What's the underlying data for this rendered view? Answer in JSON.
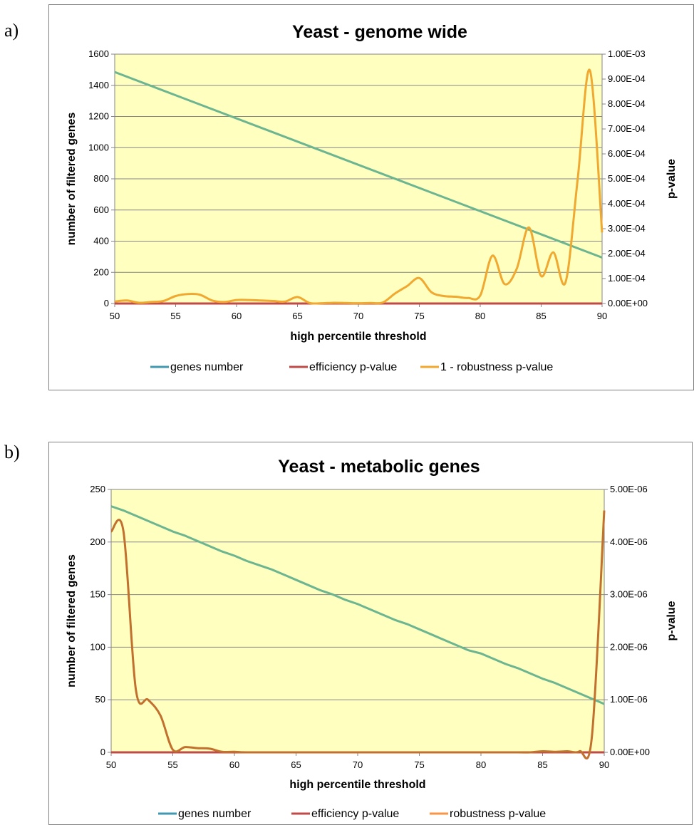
{
  "panels": {
    "a_label": "a)",
    "b_label": "b)"
  },
  "colors": {
    "plot_background": "#ffffc0",
    "gridline": "#868686",
    "genes_number_line": "#6cb591",
    "genes_number_legend": "#4198af",
    "efficiency_pvalue": "#be4b48",
    "robustness_pvalue_a": "#f0a830",
    "robustness_pvalue_b": "#c2702e",
    "robustness_legend_b": "#f79646"
  },
  "chart_data": [
    {
      "type": "line",
      "title": "Yeast - genome wide",
      "xlabel": "high percentile threshold",
      "ylabel": "number of filtered genes",
      "y2label": "p-value",
      "xlim": [
        50,
        90
      ],
      "ylim": [
        0,
        1600
      ],
      "y2lim": [
        0,
        0.001
      ],
      "x_ticks": [
        "50",
        "55",
        "60",
        "65",
        "70",
        "75",
        "80",
        "85",
        "90"
      ],
      "y_ticks": [
        "0",
        "200",
        "400",
        "600",
        "800",
        "1000",
        "1200",
        "1400",
        "1600"
      ],
      "y2_ticks": [
        "0.00E+00",
        "1.00E-04",
        "2.00E-04",
        "3.00E-04",
        "4.00E-04",
        "5.00E-04",
        "6.00E-04",
        "7.00E-04",
        "8.00E-04",
        "9.00E-04",
        "1.00E-03"
      ],
      "grid": true,
      "legend_position": "bottom",
      "series": [
        {
          "name": "genes number",
          "axis": "left",
          "x": [
            50,
            90
          ],
          "values": [
            1485,
            295
          ]
        },
        {
          "name": "efficiency p-value",
          "axis": "right",
          "x": [
            50,
            90
          ],
          "values": [
            0,
            0
          ]
        },
        {
          "name": "1 - robustness p-value",
          "axis": "right",
          "x": [
            50,
            51,
            52,
            53,
            54,
            55,
            56,
            57,
            58,
            59,
            60,
            61,
            62,
            63,
            64,
            65,
            66,
            67,
            68,
            69,
            70,
            71,
            72,
            73,
            74,
            75,
            76,
            77,
            78,
            79,
            80,
            81,
            82,
            83,
            84,
            85,
            86,
            87,
            88,
            89,
            90
          ],
          "values": [
            8e-06,
            1.2e-05,
            3e-06,
            6e-06,
            1e-05,
            3e-05,
            3.8e-05,
            3.5e-05,
            1.2e-05,
            6e-06,
            1.4e-05,
            1.4e-05,
            1.2e-05,
            1e-05,
            8e-06,
            2.6e-05,
            2e-06,
            1e-06,
            3e-06,
            2e-06,
            1e-06,
            2e-06,
            4e-06,
            4e-05,
            7e-05,
            0.000102,
            4.5e-05,
            3e-05,
            2.7e-05,
            2.2e-05,
            3.2e-05,
            0.000192,
            7.8e-05,
            0.00014,
            0.000305,
            0.00011,
            0.000205,
            8.5e-05,
            0.0005,
            0.000935,
            0.000285
          ]
        }
      ]
    },
    {
      "type": "line",
      "title": "Yeast - metabolic genes",
      "xlabel": "high percentile threshold",
      "ylabel": "number of filtered genes",
      "y2label": "p-value",
      "xlim": [
        50,
        90
      ],
      "ylim": [
        0,
        250
      ],
      "y2lim": [
        0,
        5e-06
      ],
      "x_ticks": [
        "50",
        "55",
        "60",
        "65",
        "70",
        "75",
        "80",
        "85",
        "90"
      ],
      "y_ticks": [
        "0",
        "50",
        "100",
        "150",
        "200",
        "250"
      ],
      "y2_ticks": [
        "0.00E+00",
        "1.00E-06",
        "2.00E-06",
        "3.00E-06",
        "4.00E-06",
        "5.00E-06"
      ],
      "grid": true,
      "legend_position": "bottom",
      "series": [
        {
          "name": "genes number",
          "axis": "left",
          "x": [
            50,
            51,
            52,
            53,
            54,
            55,
            56,
            57,
            58,
            59,
            60,
            61,
            62,
            63,
            64,
            65,
            66,
            67,
            68,
            69,
            70,
            71,
            72,
            73,
            74,
            75,
            76,
            77,
            78,
            79,
            80,
            81,
            82,
            83,
            84,
            85,
            86,
            87,
            88,
            89,
            90
          ],
          "values": [
            234,
            230,
            225,
            220,
            215,
            210,
            206,
            201,
            196,
            191,
            187,
            182,
            178,
            174,
            169,
            164,
            159,
            154,
            150,
            145,
            141,
            136,
            131,
            126,
            122,
            117,
            112,
            107,
            102,
            97,
            94,
            89,
            84,
            80,
            75,
            70,
            66,
            61,
            56,
            51,
            46
          ]
        },
        {
          "name": "efficiency p-value",
          "axis": "right",
          "x": [
            50,
            90
          ],
          "values": [
            0,
            0
          ]
        },
        {
          "name": "robustness p-value",
          "axis": "right",
          "x": [
            50,
            51,
            52,
            53,
            54,
            55,
            56,
            57,
            58,
            59,
            60,
            61,
            65,
            70,
            75,
            80,
            83,
            84,
            85,
            86,
            87,
            88,
            89,
            90
          ],
          "values": [
            4.2e-06,
            4.2e-06,
            1.2e-06,
            1e-06,
            7e-07,
            5e-08,
            1e-07,
            8e-08,
            7e-08,
            1e-08,
            1e-08,
            0.0,
            0.0,
            0.0,
            0.0,
            0.0,
            0.0,
            0.0,
            2e-08,
            1e-08,
            2e-08,
            2e-08,
            3e-07,
            4.6e-06
          ]
        }
      ]
    }
  ]
}
